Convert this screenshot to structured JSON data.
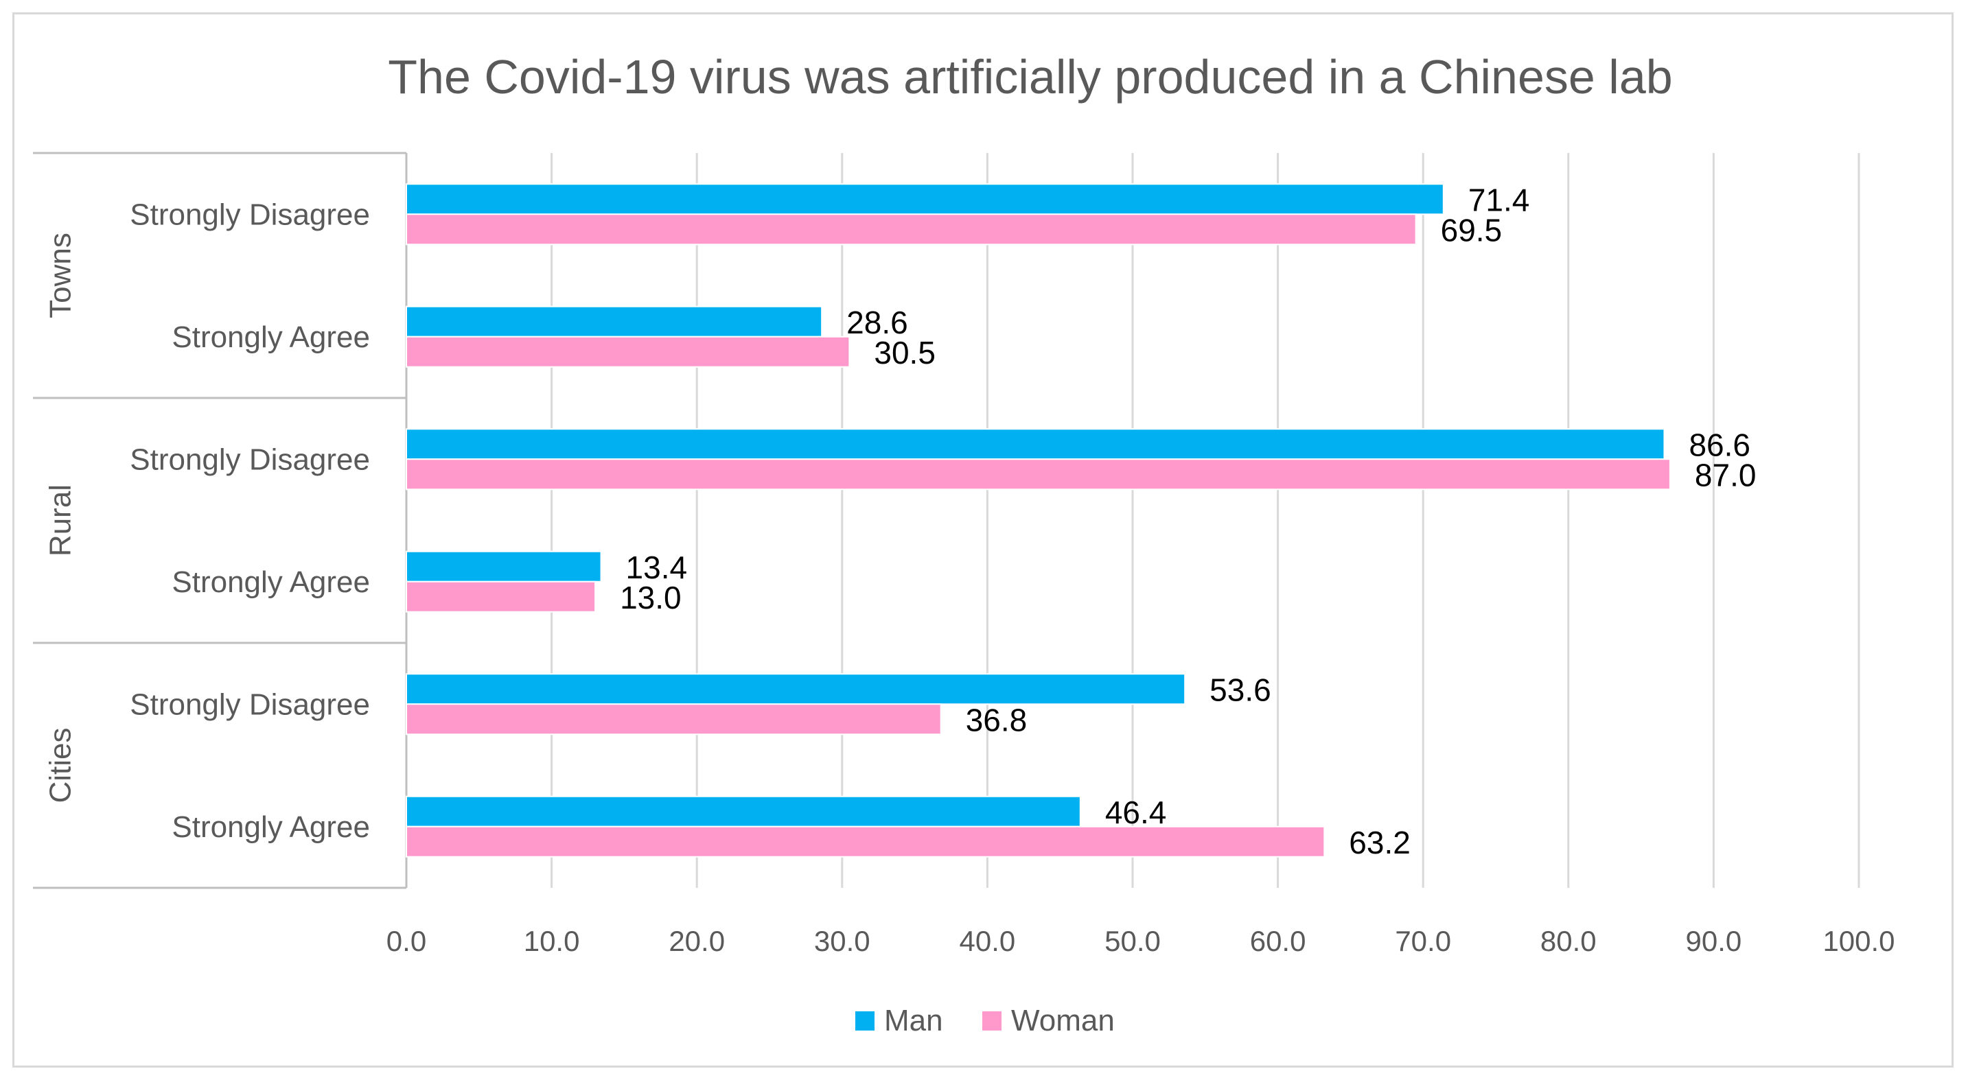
{
  "chart_data": {
    "type": "bar",
    "orientation": "horizontal",
    "title": "The Covid-19 virus was artificially produced in a Chinese lab",
    "xlabel": "",
    "ylabel": "",
    "xlim": [
      0,
      100
    ],
    "x_ticks": [
      "0.0",
      "10.0",
      "20.0",
      "30.0",
      "40.0",
      "50.0",
      "60.0",
      "70.0",
      "80.0",
      "90.0",
      "100.0"
    ],
    "grid": true,
    "legend_position": "bottom",
    "groups": [
      {
        "name": "Towns",
        "categories": [
          {
            "label": "Strongly Disagree",
            "values": [
              71.4,
              69.5
            ],
            "labels": [
              "71.4",
              "69.5"
            ]
          },
          {
            "label": "Strongly Agree",
            "values": [
              28.6,
              30.5
            ],
            "labels": [
              "28.6",
              "30.5"
            ]
          }
        ]
      },
      {
        "name": "Rural",
        "categories": [
          {
            "label": "Strongly Disagree",
            "values": [
              86.6,
              87.0
            ],
            "labels": [
              "86.6",
              "87.0"
            ]
          },
          {
            "label": "Strongly Agree",
            "values": [
              13.4,
              13.0
            ],
            "labels": [
              "13.4",
              "13.0"
            ]
          }
        ]
      },
      {
        "name": "Cities",
        "categories": [
          {
            "label": "Strongly Disagree",
            "values": [
              53.6,
              36.8
            ],
            "labels": [
              "53.6",
              "36.8"
            ]
          },
          {
            "label": "Strongly Agree",
            "values": [
              46.4,
              63.2
            ],
            "labels": [
              "46.4",
              "63.2"
            ]
          }
        ]
      }
    ],
    "series": [
      {
        "name": "Man",
        "color": "#00b0f0"
      },
      {
        "name": "Woman",
        "color": "#ff99cc"
      }
    ]
  }
}
